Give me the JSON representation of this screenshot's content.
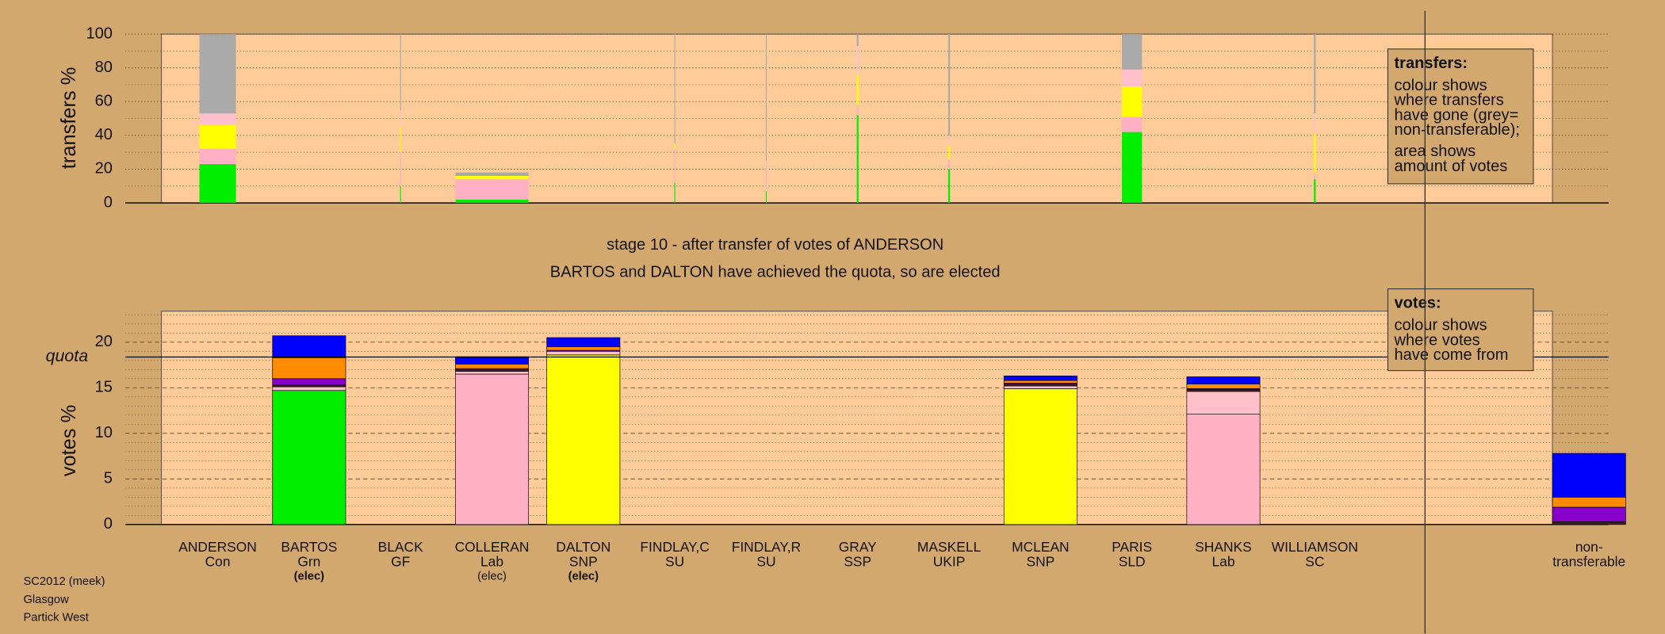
{
  "chart_data": [
    {
      "type": "bar",
      "stacked": true,
      "ylabel": "transfers %",
      "ylim": [
        0,
        100
      ],
      "yticks": [
        0,
        20,
        40,
        60,
        80,
        100
      ],
      "minor_yticks": [
        10,
        30,
        50,
        70,
        90
      ],
      "bar_widths": [
        40,
        null,
        1,
        80,
        null,
        1,
        1,
        2,
        2,
        null,
        22,
        null,
        2,
        null
      ],
      "series": [
        {
          "color": "#00ee00",
          "values": [
            23,
            null,
            10,
            2,
            null,
            12,
            7,
            52,
            20,
            null,
            42,
            null,
            14,
            null
          ]
        },
        {
          "color": "#ffb0c4",
          "values": [
            9,
            null,
            20,
            12,
            null,
            20,
            18,
            6,
            6,
            null,
            9,
            null,
            4,
            null
          ]
        },
        {
          "color": "#ffff00",
          "values": [
            14,
            null,
            15,
            2,
            null,
            3,
            0,
            18,
            8,
            null,
            18,
            null,
            23,
            null
          ]
        },
        {
          "color": "#ffc0cb",
          "values": [
            7,
            null,
            10,
            0,
            null,
            0,
            0,
            17,
            6,
            null,
            10,
            null,
            12,
            null
          ]
        },
        {
          "color": "#aaaaaa",
          "values": [
            47,
            null,
            45,
            2,
            null,
            65,
            75,
            7,
            60,
            null,
            21,
            null,
            47,
            null
          ]
        }
      ],
      "legend": {
        "title": "transfers:",
        "paragraphs": [
          [
            "colour shows",
            "where transfers",
            "have gone (grey=",
            "non-transferable);"
          ],
          [
            "area shows",
            "amount of votes"
          ]
        ]
      }
    },
    {
      "type": "bar",
      "stacked": true,
      "title": "stage 10 - after transfer of votes of ANDERSON",
      "subtitle": "BARTOS and DALTON have achieved the quota, so are elected",
      "ylabel": "votes %",
      "categories": [
        "ANDERSON",
        "BARTOS",
        "BLACK",
        "COLLERAN",
        "DALTON",
        "FINDLAY,C",
        "FINDLAY,R",
        "GRAY",
        "MASKELL",
        "MCLEAN",
        "PARIS",
        "SHANKS",
        "WILLIAMSON",
        "non-"
      ],
      "parties": [
        "Con",
        "Grn",
        "GF",
        "Lab",
        "SNP",
        "SU",
        "SU",
        "SSP",
        "UKIP",
        "SNP",
        "SLD",
        "Lab",
        "SC",
        "transferable"
      ],
      "status": [
        null,
        "(elec)",
        null,
        "(elec)",
        "(elec)",
        null,
        null,
        null,
        null,
        null,
        null,
        null,
        null,
        null
      ],
      "status_bold": [
        false,
        true,
        false,
        false,
        true,
        false,
        false,
        false,
        false,
        false,
        false,
        false,
        false,
        false
      ],
      "ylim": [
        0,
        23.4
      ],
      "yticks": [
        0,
        5,
        10,
        15,
        20
      ],
      "minor_yticks": [
        1,
        2,
        3,
        4,
        6,
        7,
        8,
        9,
        11,
        12,
        13,
        14,
        16,
        17,
        18,
        19,
        21,
        22,
        23
      ],
      "quota": {
        "label": "quota",
        "value": 18.37
      },
      "series": [
        {
          "color": "#00ee00",
          "values": [
            0,
            14.7,
            0,
            null,
            null,
            0,
            0,
            0,
            0,
            null,
            0,
            null,
            0,
            null
          ]
        },
        {
          "color": "#ffb0c4",
          "values": [
            null,
            null,
            null,
            16.5,
            null,
            null,
            null,
            null,
            null,
            null,
            null,
            12.1,
            null,
            null
          ]
        },
        {
          "color": "#ffff00",
          "values": [
            null,
            null,
            null,
            null,
            18.6,
            null,
            null,
            null,
            null,
            14.9,
            null,
            null,
            null,
            null
          ]
        },
        {
          "color": "#ffc0cb",
          "values": [
            null,
            0.4,
            null,
            0.3,
            0.4,
            null,
            null,
            null,
            null,
            0.3,
            null,
            2.5,
            null,
            null
          ]
        },
        {
          "color": "#402020",
          "values": [
            null,
            0.2,
            null,
            0.3,
            null,
            null,
            null,
            null,
            null,
            0.2,
            null,
            0.2,
            null,
            0.3
          ]
        },
        {
          "color": "#8800cc",
          "values": [
            null,
            0.7,
            null,
            null,
            0.1,
            null,
            null,
            null,
            null,
            0.1,
            null,
            0.1,
            null,
            1.6
          ]
        },
        {
          "color": "#ff8c00",
          "values": [
            null,
            2.3,
            null,
            0.5,
            0.4,
            null,
            null,
            null,
            null,
            0.3,
            null,
            0.5,
            null,
            1.1
          ]
        },
        {
          "color": "#0000ff",
          "values": [
            null,
            2.4,
            null,
            0.8,
            1.0,
            null,
            null,
            null,
            null,
            0.5,
            null,
            0.8,
            null,
            4.8
          ]
        }
      ],
      "legend": {
        "title": "votes:",
        "paragraphs": [
          [
            "colour shows",
            "where votes",
            "have come from"
          ]
        ]
      }
    }
  ],
  "footer": [
    "SC2012 (meek)",
    "Glasgow",
    "Partick West"
  ]
}
